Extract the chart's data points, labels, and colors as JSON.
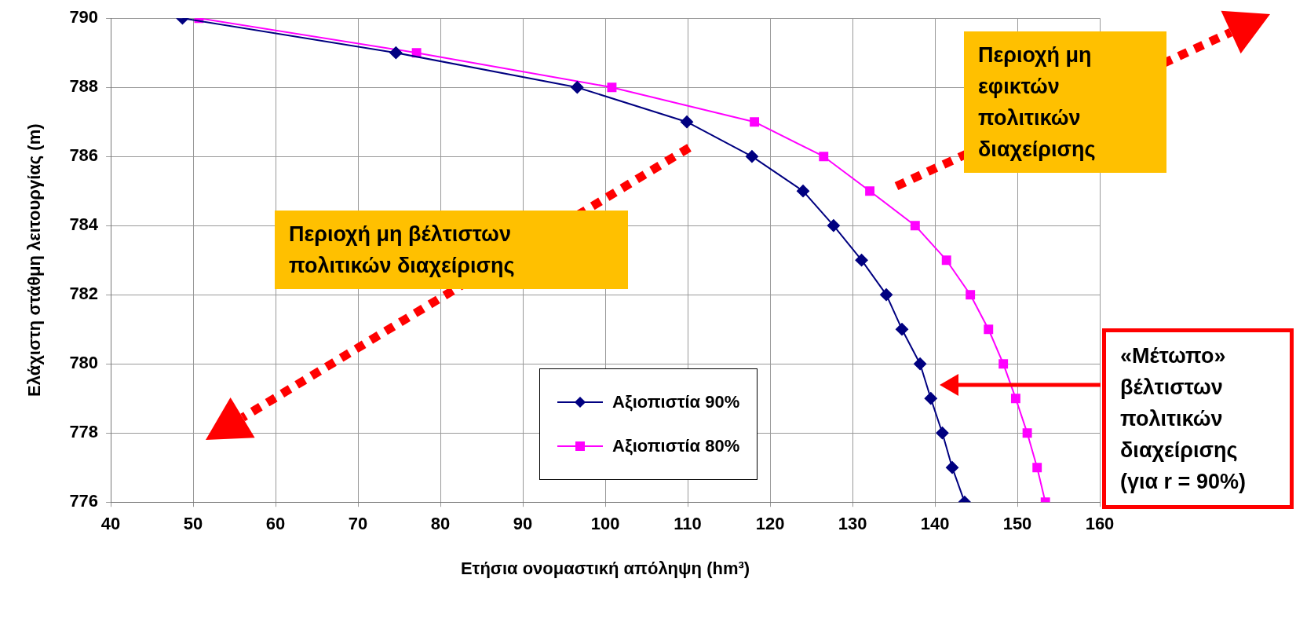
{
  "chart_data": {
    "type": "line",
    "xlabel": "Ετήσια ονομαστική απόληψη (hm³)",
    "ylabel": "Ελάχιστη στάθμη λειτουργίας (m)",
    "xlim": [
      40,
      160
    ],
    "xticks": [
      40,
      50,
      60,
      70,
      80,
      90,
      100,
      110,
      120,
      130,
      140,
      150,
      160
    ],
    "ylim": [
      776,
      790
    ],
    "yticks": [
      776,
      778,
      780,
      782,
      784,
      786,
      788,
      790
    ],
    "grid": true,
    "legend": "bottom",
    "line_style": "solid",
    "series": [
      {
        "name": "Αξιοπιστία 90%",
        "color": "#000080",
        "marker": "diamond",
        "x": [
          48.7,
          74.6,
          96.6,
          109.9,
          117.8,
          124.0,
          127.7,
          131.1,
          134.1,
          136.0,
          138.2,
          139.5,
          140.9,
          142.1,
          143.6
        ],
        "values": [
          790,
          789,
          788,
          787,
          786,
          785,
          784,
          783,
          782,
          781,
          780,
          779,
          778,
          777,
          776
        ]
      },
      {
        "name": "Αξιοπιστία 80%",
        "color": "#ff00ff",
        "marker": "square",
        "x": [
          50.7,
          77.1,
          100.8,
          118.1,
          126.5,
          132.1,
          137.6,
          141.4,
          144.3,
          146.5,
          148.3,
          149.8,
          151.2,
          152.4,
          153.4
        ],
        "values": [
          790,
          789,
          788,
          787,
          786,
          785,
          784,
          783,
          782,
          781,
          780,
          779,
          778,
          777,
          776
        ]
      }
    ],
    "annotations": [
      "Περιοχή μη βέλτιστων πολιτικών διαχείρισης",
      "Περιοχή μη εφικτών πολιτικών διαχείρισης",
      "«Μέτωπο» βέλτιστων πολιτικών διαχείρισης (για r = 90%)"
    ]
  }
}
